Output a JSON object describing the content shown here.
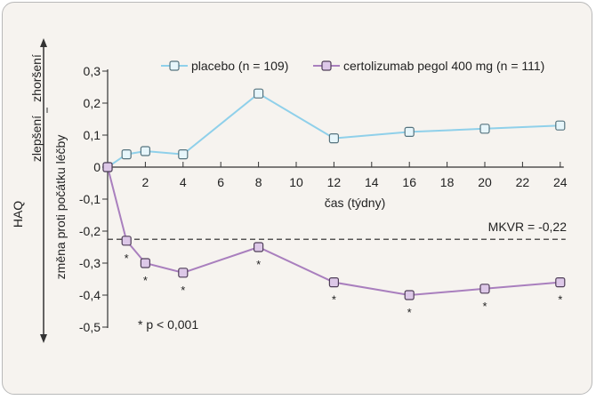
{
  "chart_data": {
    "type": "line",
    "x_label": "čas (týdny)",
    "y_label": "změna proti počátku léčby",
    "y_group_label": "HAQ",
    "y_worse_label": "zhoršení",
    "y_better_label": "zlepšení",
    "x_ticks": [
      2,
      4,
      6,
      8,
      10,
      12,
      14,
      16,
      18,
      20,
      22,
      24
    ],
    "x_ticks_text": [
      "2",
      "4",
      "6",
      "8",
      "10",
      "12",
      "14",
      "16",
      "18",
      "20",
      "22",
      "24"
    ],
    "y_ticks": [
      0.3,
      0.2,
      0.1,
      0,
      -0.1,
      -0.2,
      -0.3,
      -0.4,
      -0.5
    ],
    "y_ticks_text": [
      "0,3",
      "0,2",
      "0,1",
      "0",
      "-0,1",
      "-0,2",
      "-0,3",
      "-0,4",
      "-0,5"
    ],
    "xlim": [
      0,
      24
    ],
    "ylim": [
      -0.5,
      0.3
    ],
    "legend_position": "top-right",
    "series": [
      {
        "name": "placebo (n = 109)",
        "color": "#8fd0ea",
        "x": [
          0,
          1,
          2,
          4,
          8,
          12,
          16,
          20,
          24
        ],
        "y": [
          0,
          0.04,
          0.05,
          0.04,
          0.23,
          0.09,
          0.11,
          0.12,
          0.13
        ]
      },
      {
        "name": "certolizumab pegol 400 mg (n = 111)",
        "color": "#a97fbe",
        "x": [
          0,
          1,
          2,
          4,
          8,
          12,
          16,
          20,
          24
        ],
        "y": [
          0,
          -0.23,
          -0.3,
          -0.33,
          -0.25,
          -0.36,
          -0.4,
          -0.38,
          -0.36
        ],
        "significant": [
          false,
          true,
          true,
          true,
          true,
          true,
          true,
          true,
          true
        ]
      }
    ],
    "significance_marker": "*",
    "reference_line": {
      "y": -0.22,
      "label": "MKVR = -0,22"
    },
    "footnote": "* p < 0,001"
  }
}
